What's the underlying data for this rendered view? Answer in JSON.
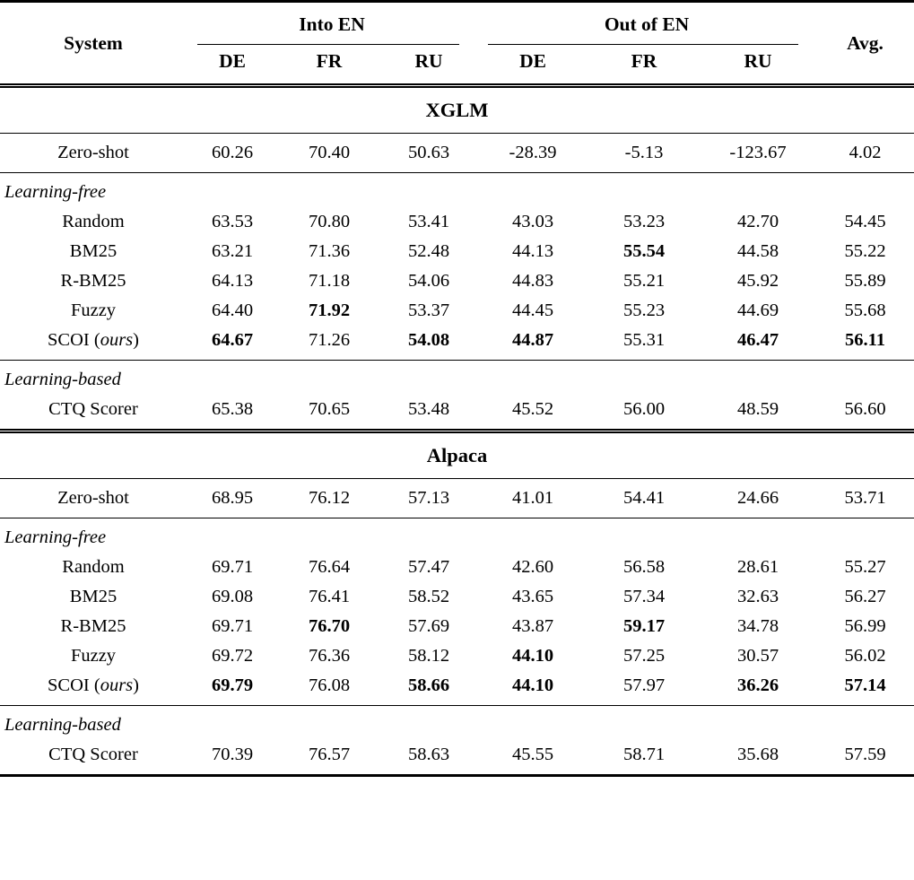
{
  "header": {
    "system": "System",
    "into_en": "Into EN",
    "out_of_en": "Out of EN",
    "avg": "Avg.",
    "sub_columns": [
      "DE",
      "FR",
      "RU",
      "DE",
      "FR",
      "RU"
    ]
  },
  "sections": [
    {
      "title": "XGLM",
      "blocks": [
        {
          "label": "",
          "rows": [
            {
              "system": "Zero-shot",
              "values": [
                "60.26",
                "70.40",
                "50.63",
                "-28.39",
                "-5.13",
                "-123.67",
                "4.02"
              ],
              "bold": [
                false,
                false,
                false,
                false,
                false,
                false,
                false
              ]
            }
          ]
        },
        {
          "label": "Learning-free",
          "rows": [
            {
              "system": "Random",
              "values": [
                "63.53",
                "70.80",
                "53.41",
                "43.03",
                "53.23",
                "42.70",
                "54.45"
              ],
              "bold": [
                false,
                false,
                false,
                false,
                false,
                false,
                false
              ]
            },
            {
              "system": "BM25",
              "values": [
                "63.21",
                "71.36",
                "52.48",
                "44.13",
                "55.54",
                "44.58",
                "55.22"
              ],
              "bold": [
                false,
                false,
                false,
                false,
                true,
                false,
                false
              ]
            },
            {
              "system": "R-BM25",
              "values": [
                "64.13",
                "71.18",
                "54.06",
                "44.83",
                "55.21",
                "45.92",
                "55.89"
              ],
              "bold": [
                false,
                false,
                false,
                false,
                false,
                false,
                false
              ]
            },
            {
              "system": "Fuzzy",
              "values": [
                "64.40",
                "71.92",
                "53.37",
                "44.45",
                "55.23",
                "44.69",
                "55.68"
              ],
              "bold": [
                false,
                true,
                false,
                false,
                false,
                false,
                false
              ]
            },
            {
              "system": "SCOI",
              "suffix_italic": "ours",
              "values": [
                "64.67",
                "71.26",
                "54.08",
                "44.87",
                "55.31",
                "46.47",
                "56.11"
              ],
              "bold": [
                true,
                false,
                true,
                true,
                false,
                true,
                true
              ]
            }
          ]
        },
        {
          "label": "Learning-based",
          "rows": [
            {
              "system": "CTQ Scorer",
              "values": [
                "65.38",
                "70.65",
                "53.48",
                "45.52",
                "56.00",
                "48.59",
                "56.60"
              ],
              "bold": [
                false,
                false,
                false,
                false,
                false,
                false,
                false
              ]
            }
          ]
        }
      ]
    },
    {
      "title": "Alpaca",
      "blocks": [
        {
          "label": "",
          "rows": [
            {
              "system": "Zero-shot",
              "values": [
                "68.95",
                "76.12",
                "57.13",
                "41.01",
                "54.41",
                "24.66",
                "53.71"
              ],
              "bold": [
                false,
                false,
                false,
                false,
                false,
                false,
                false
              ]
            }
          ]
        },
        {
          "label": "Learning-free",
          "rows": [
            {
              "system": "Random",
              "values": [
                "69.71",
                "76.64",
                "57.47",
                "42.60",
                "56.58",
                "28.61",
                "55.27"
              ],
              "bold": [
                false,
                false,
                false,
                false,
                false,
                false,
                false
              ]
            },
            {
              "system": "BM25",
              "values": [
                "69.08",
                "76.41",
                "58.52",
                "43.65",
                "57.34",
                "32.63",
                "56.27"
              ],
              "bold": [
                false,
                false,
                false,
                false,
                false,
                false,
                false
              ]
            },
            {
              "system": "R-BM25",
              "values": [
                "69.71",
                "76.70",
                "57.69",
                "43.87",
                "59.17",
                "34.78",
                "56.99"
              ],
              "bold": [
                false,
                true,
                false,
                false,
                true,
                false,
                false
              ]
            },
            {
              "system": "Fuzzy",
              "values": [
                "69.72",
                "76.36",
                "58.12",
                "44.10",
                "57.25",
                "30.57",
                "56.02"
              ],
              "bold": [
                false,
                false,
                false,
                true,
                false,
                false,
                false
              ]
            },
            {
              "system": "SCOI",
              "suffix_italic": "ours",
              "values": [
                "69.79",
                "76.08",
                "58.66",
                "44.10",
                "57.97",
                "36.26",
                "57.14"
              ],
              "bold": [
                true,
                false,
                true,
                true,
                false,
                true,
                true
              ]
            }
          ]
        },
        {
          "label": "Learning-based",
          "rows": [
            {
              "system": "CTQ Scorer",
              "values": [
                "70.39",
                "76.57",
                "58.63",
                "45.55",
                "58.71",
                "35.68",
                "57.59"
              ],
              "bold": [
                false,
                false,
                false,
                false,
                false,
                false,
                false
              ]
            }
          ]
        }
      ]
    }
  ]
}
